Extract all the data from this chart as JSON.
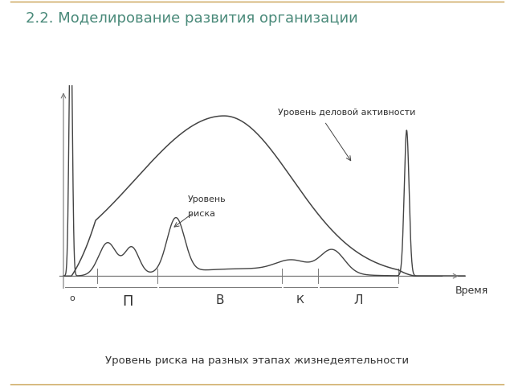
{
  "title": "2.2. Моделирование развития организации",
  "title_color": "#4a8a7a",
  "caption": "Уровень риска на разных этапах жизнедеятельности",
  "annotation_activity": "Уровень деловой активности",
  "annotation_risk_line1": "Уровень",
  "annotation_risk_line2": "риска",
  "xlabel": "Время",
  "stage_labels": [
    "о",
    "П",
    "В",
    "К",
    "Л"
  ],
  "bg_color": "#ffffff",
  "line_color": "#444444",
  "axis_color": "#777777",
  "border_color": "#c8a050",
  "figsize": [
    6.4,
    4.8
  ],
  "dpi": 100
}
